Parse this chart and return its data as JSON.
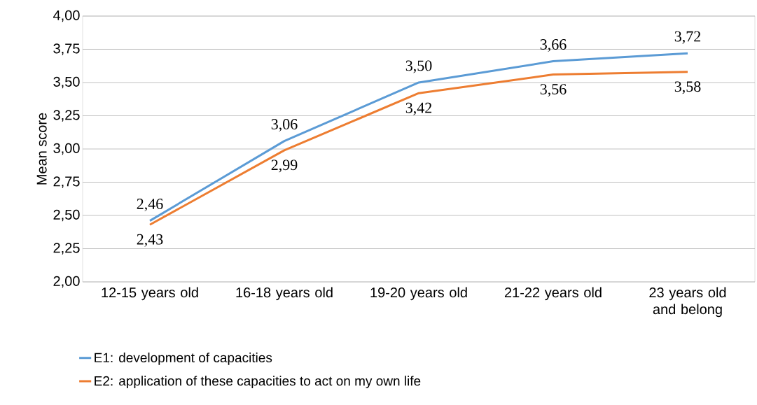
{
  "chart_data": {
    "type": "line",
    "ylabel": "Mean score",
    "categories": [
      "12-15 years old",
      "16-18 years old",
      "19-20 years old",
      "21-22 years old",
      "23 years old and belong"
    ],
    "series": [
      {
        "name": "E1: development of capacities",
        "color": "#5b9bd5",
        "values": [
          2.46,
          3.06,
          3.5,
          3.66,
          3.72
        ],
        "value_labels": [
          "2,46",
          "3,06",
          "3,50",
          "3,66",
          "3,72"
        ]
      },
      {
        "name": "E2: application of these capacities to act on my own life",
        "color": "#ed7d31",
        "values": [
          2.43,
          2.99,
          3.42,
          3.56,
          3.58
        ],
        "value_labels": [
          "2,43",
          "2,99",
          "3,42",
          "3,56",
          "3,58"
        ]
      }
    ],
    "ylim": [
      2,
      4
    ],
    "yticks": [
      {
        "value": 2,
        "label": "2,00"
      },
      {
        "value": 2.25,
        "label": "2,25"
      },
      {
        "value": 2.5,
        "label": "2,50"
      },
      {
        "value": 2.75,
        "label": "2,75"
      },
      {
        "value": 3,
        "label": "3,00"
      },
      {
        "value": 3.25,
        "label": "3,25"
      },
      {
        "value": 3.5,
        "label": "3,50"
      },
      {
        "value": 3.75,
        "label": "3,75"
      },
      {
        "value": 4,
        "label": "4,00"
      }
    ],
    "grid": "y",
    "legend": "bottom",
    "marker": "none",
    "line_style": "solid"
  }
}
